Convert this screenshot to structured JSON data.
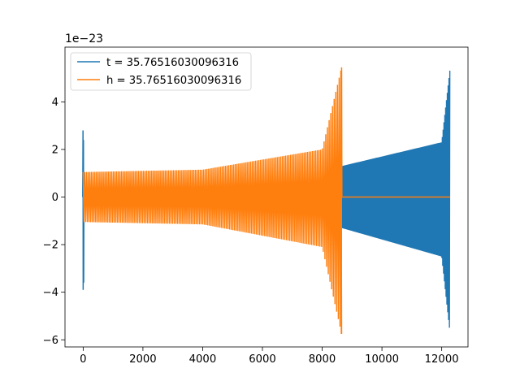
{
  "chart_data": {
    "type": "line",
    "title": "",
    "xlabel": "",
    "ylabel": "",
    "offset_text": "1e−23",
    "xlim": [
      -608,
      12880
    ],
    "ylim": [
      -6.3,
      6.3
    ],
    "xticks": [
      0,
      2000,
      4000,
      6000,
      8000,
      10000,
      12000
    ],
    "xtick_labels": [
      "0",
      "2000",
      "4000",
      "6000",
      "8000",
      "10000",
      "12000"
    ],
    "yticks": [
      -6,
      -4,
      -2,
      0,
      2,
      4
    ],
    "ytick_labels": [
      "−6",
      "−4",
      "−2",
      "0",
      "2",
      "4"
    ],
    "grid": false,
    "legend_position": "upper-left",
    "series": [
      {
        "name": "t = 35.76516030096316",
        "color": "#1f77b4",
        "description": "oscillating signal; spike near x=0, ringdown, then chirp growing to peak near x=12280",
        "envelope_key_points": [
          {
            "x": 0,
            "max": 2.8,
            "min": -3.9
          },
          {
            "x": 8650,
            "max": 1.3,
            "min": -1.3
          },
          {
            "x": 12000,
            "max": 2.3,
            "min": -2.5
          },
          {
            "x": 12280,
            "max": 5.4,
            "min": -5.75
          }
        ]
      },
      {
        "name": "h = 35.76516030096316",
        "color": "#ff7f0e",
        "description": "oscillating signal growing from ~1 to peak near x=8650, then flat at 0 until x=12280",
        "envelope_key_points": [
          {
            "x": 0,
            "max": 1.05,
            "min": -1.05
          },
          {
            "x": 4000,
            "max": 1.15,
            "min": -1.15
          },
          {
            "x": 8000,
            "max": 2.0,
            "min": -2.1
          },
          {
            "x": 8650,
            "max": 5.45,
            "min": -5.75
          },
          {
            "x": 12280,
            "max": 0.0,
            "min": 0.0
          }
        ]
      }
    ]
  }
}
